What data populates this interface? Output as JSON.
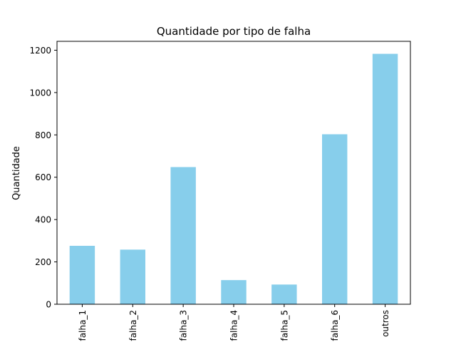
{
  "chart_data": {
    "type": "bar",
    "title": "Quantidade por tipo de falha",
    "xlabel": "",
    "ylabel": "Quantidade",
    "categories": [
      "falha_1",
      "falha_2",
      "falha_3",
      "falha_4",
      "falha_5",
      "falha_6",
      "outros"
    ],
    "values": [
      276,
      258,
      648,
      114,
      93,
      803,
      1183
    ],
    "ylim": [
      0,
      1242
    ],
    "yticks": [
      0,
      200,
      400,
      600,
      800,
      1000,
      1200
    ],
    "bar_color": "#87CEEB",
    "grid": false,
    "legend": "none"
  }
}
